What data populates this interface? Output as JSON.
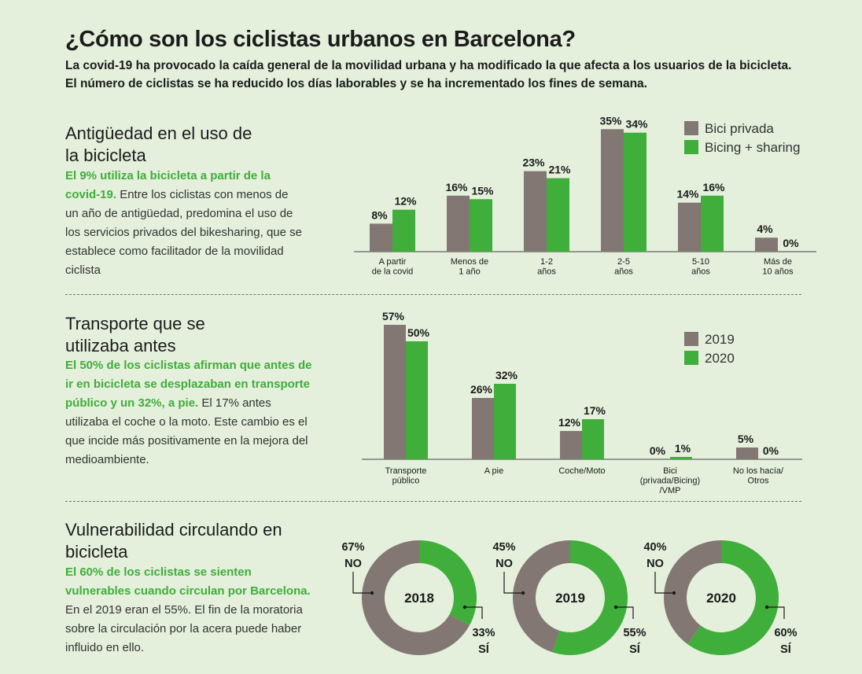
{
  "title": "¿Cómo son los ciclistas urbanos en Barcelona?",
  "subtitle": "La covid-19 ha provocado la caída general de la movilidad urbana y ha modificado la que afecta a los usuarios de la bicicleta. El número de ciclistas se ha reducido los días laborables y se ha incrementado los fines de semana.",
  "colors": {
    "grey": "#837774",
    "green": "#3fae3a",
    "background": "#e4efdc"
  },
  "sections": [
    {
      "title": "Antigüedad en el uso de la bicicleta",
      "highlight": "El 9% utiliza la bicicleta a partir de la covid-19.",
      "text": "Entre los ciclistas con menos de un año de antigüedad, predomina el uso de los servicios privados del bikesharing, que se establece como facilitador de la movilidad ciclista"
    },
    {
      "title": "Transporte que se utilizaba antes",
      "highlight": "El 50% de los ciclistas afirman que antes de ir en bicicleta se desplazaban en transporte público y un 32%, a pie.",
      "text": "El 17% antes utilizaba el coche o la moto. Este cambio es el que incide más positivamente en la mejora del medioambiente."
    },
    {
      "title": "Vulnerabilidad circulando en bicicleta",
      "highlight": "El 60% de los ciclistas se sienten vulnerables cuando circulan por Barcelona.",
      "text": "En el 2019 eran el 55%. El fin de la moratoria sobre la circulación por la acera puede haber influido en ello."
    }
  ],
  "chart_data": [
    {
      "type": "bar",
      "categories": [
        [
          "A partir",
          "de la covid"
        ],
        [
          "Menos de",
          "1 año"
        ],
        [
          "1-2",
          "años"
        ],
        [
          "2-5",
          "años"
        ],
        [
          "5-10",
          "años"
        ],
        [
          "Más de",
          "10 años"
        ]
      ],
      "series": [
        {
          "name": "Bici privada",
          "values": [
            8,
            16,
            23,
            35,
            14,
            4
          ],
          "color": "#837774"
        },
        {
          "name": "Bicing + sharing",
          "values": [
            12,
            15,
            21,
            34,
            16,
            0
          ],
          "color": "#3fae3a"
        }
      ],
      "unit": "%",
      "ylim": [
        0,
        40
      ],
      "legend": "top-right"
    },
    {
      "type": "bar",
      "categories": [
        [
          "Transporte",
          "público"
        ],
        [
          "A pie"
        ],
        [
          "Coche/Moto"
        ],
        [
          "Bici",
          "(privada/Bicing)",
          "/VMP"
        ],
        [
          "No los hacía/",
          "Otros"
        ]
      ],
      "series": [
        {
          "name": "2019",
          "values": [
            57,
            26,
            12,
            0,
            5
          ],
          "color": "#837774"
        },
        {
          "name": "2020",
          "values": [
            50,
            32,
            17,
            1,
            0
          ],
          "color": "#3fae3a"
        }
      ],
      "unit": "%",
      "ylim": [
        0,
        60
      ],
      "legend": "top-right"
    },
    {
      "type": "pie",
      "donuts": [
        {
          "label": "2018",
          "slices": [
            {
              "name": "NO",
              "value": 67,
              "color": "#837774"
            },
            {
              "name": "SÍ",
              "value": 33,
              "color": "#3fae3a"
            }
          ]
        },
        {
          "label": "2019",
          "slices": [
            {
              "name": "NO",
              "value": 45,
              "color": "#837774"
            },
            {
              "name": "SÍ",
              "value": 55,
              "color": "#3fae3a"
            }
          ]
        },
        {
          "label": "2020",
          "slices": [
            {
              "name": "NO",
              "value": 40,
              "color": "#837774"
            },
            {
              "name": "SÍ",
              "value": 60,
              "color": "#3fae3a"
            }
          ]
        }
      ]
    }
  ]
}
